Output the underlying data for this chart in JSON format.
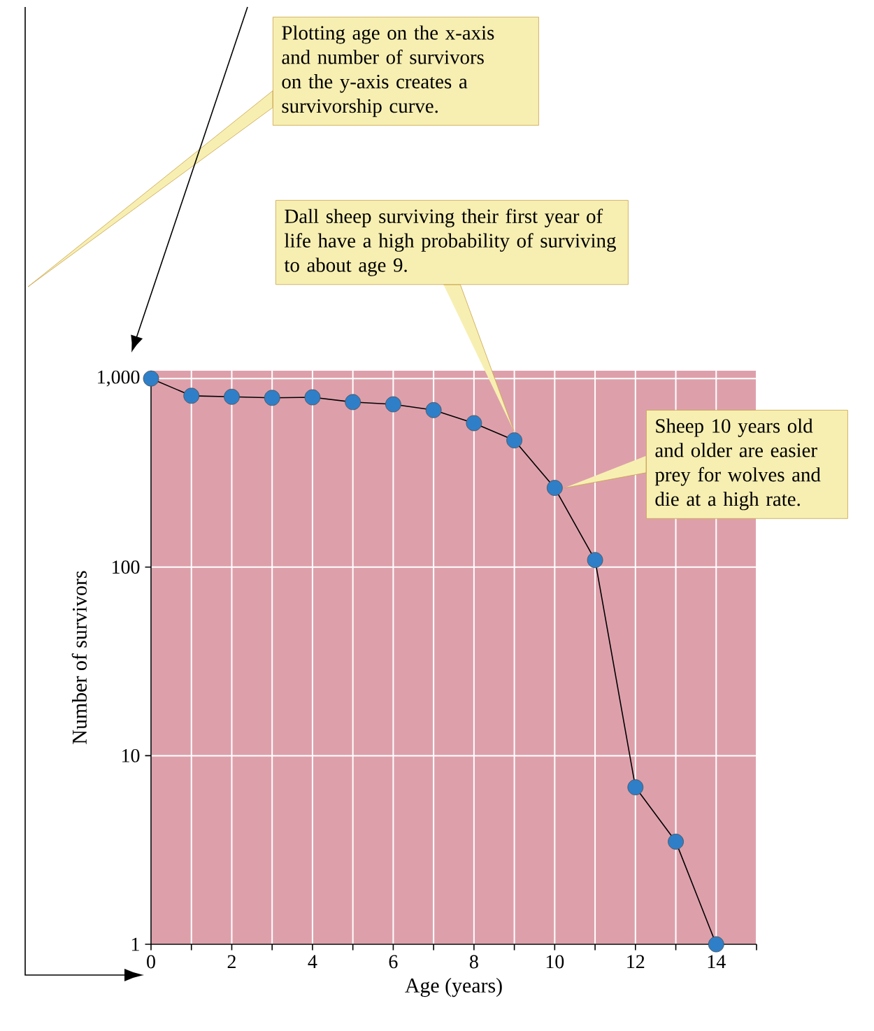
{
  "chart_data": {
    "type": "line",
    "xlabel": "Age (years)",
    "ylabel": "Number of survivors",
    "x": [
      0,
      1,
      2,
      3,
      4,
      5,
      6,
      7,
      8,
      9,
      10,
      11,
      12,
      13,
      14
    ],
    "values": [
      1000,
      810,
      800,
      790,
      795,
      750,
      730,
      680,
      580,
      470,
      263,
      109,
      6.8,
      3.5,
      1
    ],
    "color": "#2e7fc8",
    "marker": "circle",
    "line_style": "solid",
    "log": "y",
    "grid": true,
    "xlim": [
      0,
      15
    ],
    "ylim": [
      1,
      1100
    ],
    "xticks": [
      0,
      {
        "value": 1,
        "label": null
      },
      2,
      {
        "value": 3,
        "label": null
      },
      4,
      {
        "value": 5,
        "label": null
      },
      6,
      {
        "value": 7,
        "label": null
      },
      8,
      {
        "value": 9,
        "label": null
      },
      10,
      {
        "value": 11,
        "label": null
      },
      12,
      {
        "value": 13,
        "label": null
      },
      14,
      {
        "value": 15,
        "label": null
      }
    ],
    "yticks": [
      1,
      10,
      100,
      {
        "value": 1000,
        "label": "1,000"
      }
    ],
    "annotations": [
      "Plotting age on the x-axis and number of survivors on the y-axis creates a survivorship curve.",
      {
        "text": "Dall sheep surviving their first year of life have a high probability of surviving to about age 9.",
        "x": 9,
        "y": 470
      },
      {
        "text": "Sheep 10 years old and older are easier prey for wolves and die at a high rate.",
        "x": 10,
        "y": 263
      }
    ]
  }
}
